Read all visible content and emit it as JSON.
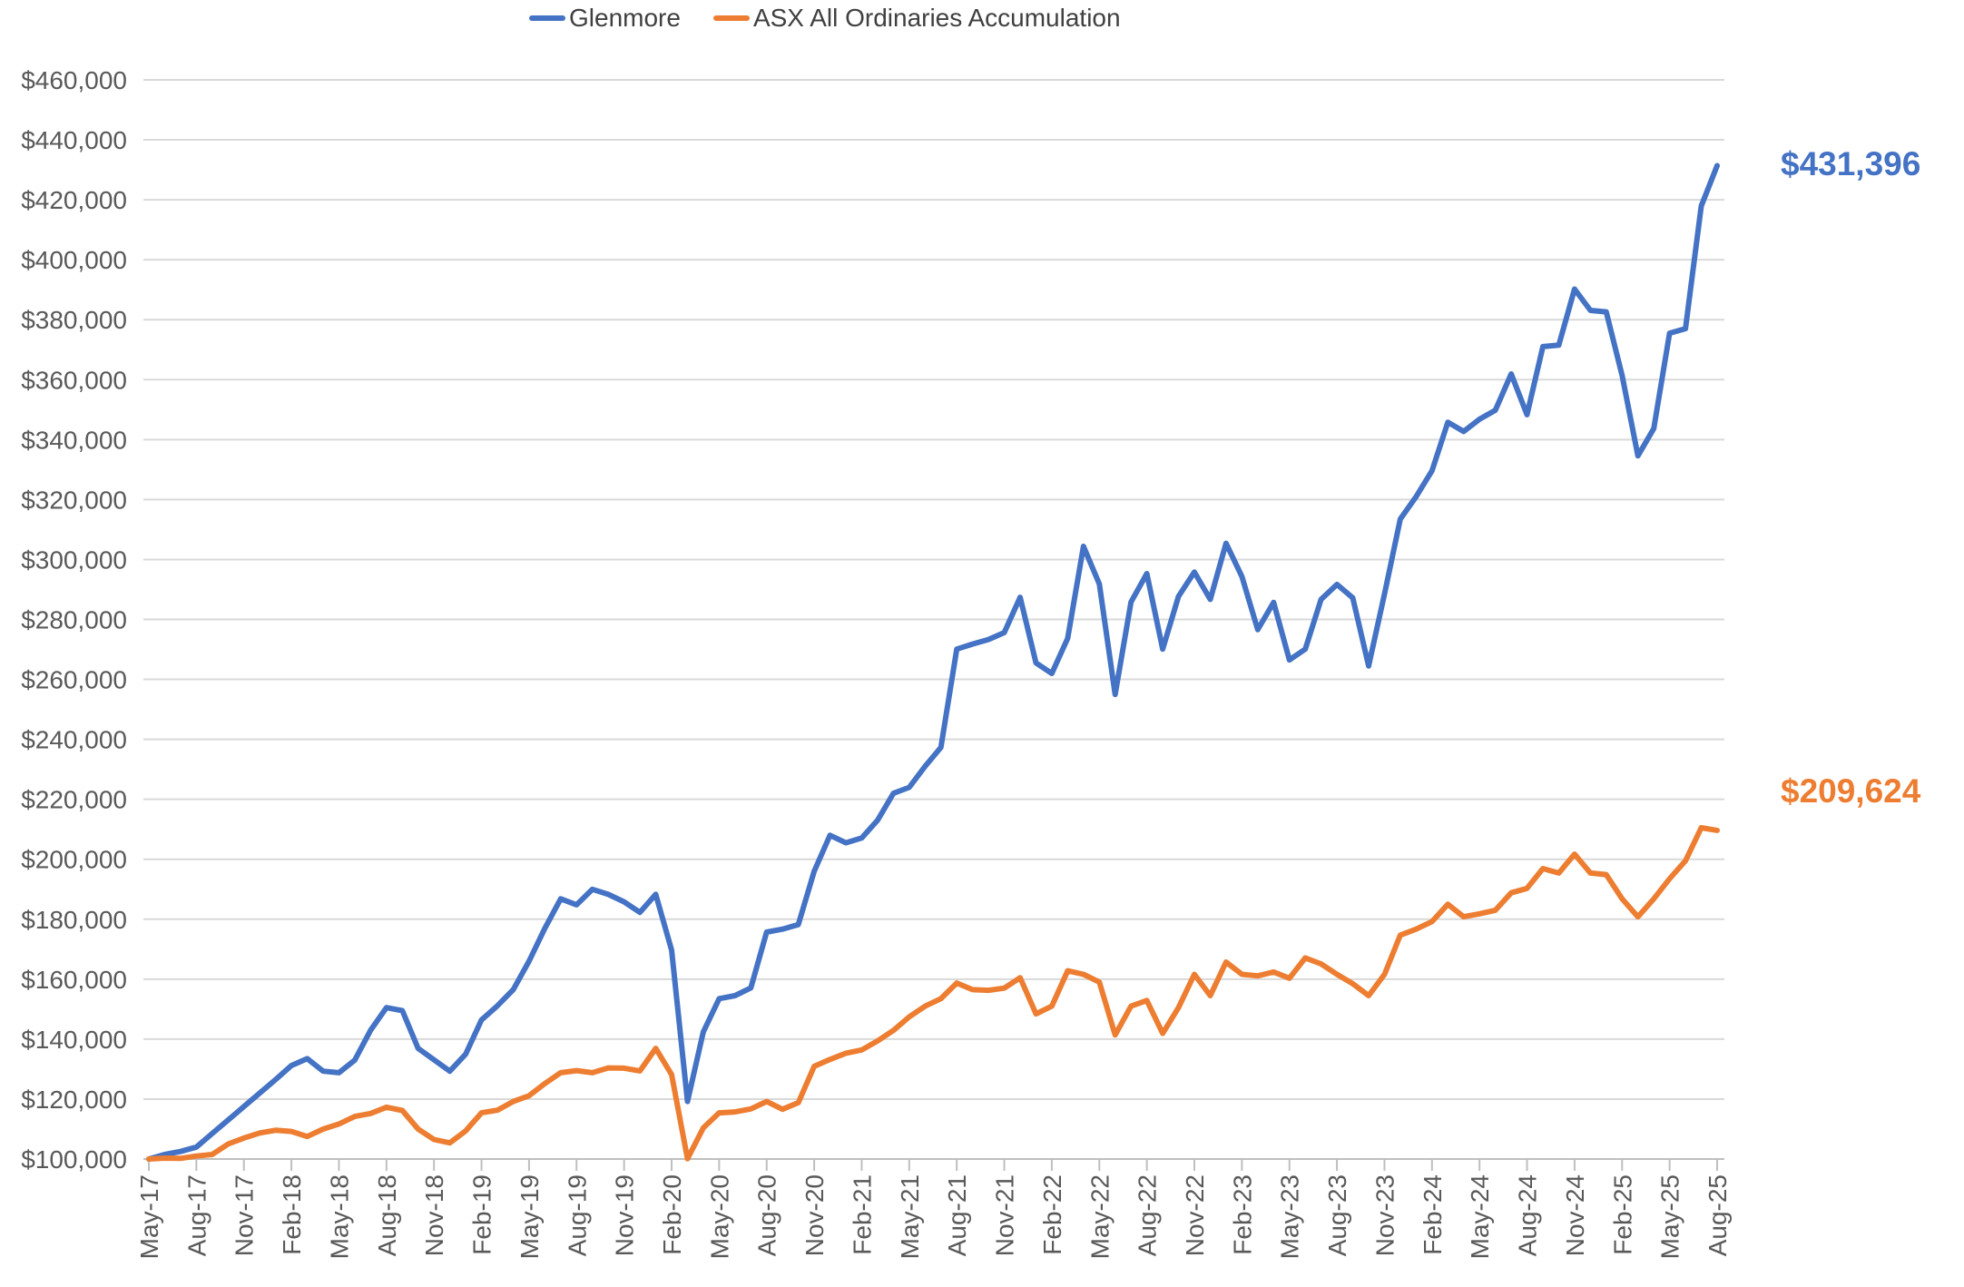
{
  "chart_data": {
    "type": "line",
    "title": "",
    "xlabel": "",
    "ylabel": "",
    "ylim": [
      100000,
      460000
    ],
    "ytick_step": 20000,
    "ytick_format": "$#,##0",
    "x_tick_every": 3,
    "grid": "horizontal",
    "legend_position": "top-center",
    "end_labels": [
      "$431,396",
      "$209,624"
    ],
    "x": [
      "May-17",
      "Jun-17",
      "Jul-17",
      "Aug-17",
      "Sep-17",
      "Oct-17",
      "Nov-17",
      "Dec-17",
      "Jan-18",
      "Feb-18",
      "Mar-18",
      "Apr-18",
      "May-18",
      "Jun-18",
      "Jul-18",
      "Aug-18",
      "Sep-18",
      "Oct-18",
      "Nov-18",
      "Dec-18",
      "Jan-19",
      "Feb-19",
      "Mar-19",
      "Apr-19",
      "May-19",
      "Jun-19",
      "Jul-19",
      "Aug-19",
      "Sep-19",
      "Oct-19",
      "Nov-19",
      "Dec-19",
      "Jan-20",
      "Feb-20",
      "Mar-20",
      "Apr-20",
      "May-20",
      "Jun-20",
      "Jul-20",
      "Aug-20",
      "Sep-20",
      "Oct-20",
      "Nov-20",
      "Dec-20",
      "Jan-21",
      "Feb-21",
      "Mar-21",
      "Apr-21",
      "May-21",
      "Jun-21",
      "Jul-21",
      "Aug-21",
      "Sep-21",
      "Oct-21",
      "Nov-21",
      "Dec-21",
      "Jan-22",
      "Feb-22",
      "Mar-22",
      "Apr-22",
      "May-22",
      "Jun-22",
      "Jul-22",
      "Aug-22",
      "Sep-22",
      "Oct-22",
      "Nov-22",
      "Dec-22",
      "Jan-23",
      "Feb-23",
      "Mar-23",
      "Apr-23",
      "May-23",
      "Jun-23",
      "Jul-23",
      "Aug-23",
      "Sep-23",
      "Oct-23",
      "Nov-23",
      "Dec-23",
      "Jan-24",
      "Feb-24",
      "Mar-24",
      "Apr-24",
      "May-24",
      "Jun-24",
      "Jul-24",
      "Aug-24",
      "Sep-24",
      "Oct-24",
      "Nov-24",
      "Dec-24",
      "Jan-25",
      "Feb-25",
      "Mar-25",
      "Apr-25",
      "May-25",
      "Jun-25",
      "Jul-25",
      "Aug-25"
    ],
    "series": [
      {
        "name": "Glenmore",
        "color": "#4472C4",
        "values": [
          100000,
          101500,
          102500,
          104000,
          108500,
          113000,
          117500,
          122000,
          126500,
          131200,
          133500,
          129300,
          128800,
          133000,
          143000,
          150500,
          149500,
          136900,
          133100,
          129300,
          135000,
          146400,
          151100,
          156500,
          166000,
          177000,
          186800,
          184800,
          190000,
          188300,
          185800,
          182300,
          188300,
          169700,
          119200,
          142400,
          153500,
          154500,
          157100,
          175700,
          176700,
          178200,
          196000,
          208000,
          205500,
          207100,
          213000,
          222000,
          224000,
          231000,
          237300,
          270100,
          271800,
          273300,
          275600,
          287400,
          265500,
          262000,
          273700,
          304400,
          291800,
          255000,
          285800,
          295300,
          270100,
          287700,
          295800,
          286700,
          305400,
          294300,
          276600,
          285700,
          266500,
          270100,
          286700,
          291700,
          287200,
          264500,
          288500,
          313500,
          321000,
          329600,
          345800,
          342700,
          346800,
          349800,
          361900,
          348300,
          371000,
          371500,
          390200,
          383100,
          382600,
          361400,
          334600,
          343700,
          375500,
          377000,
          417900,
          431396
        ]
      },
      {
        "name": "ASX All Ordinaries Accumulation",
        "color": "#ED7D31",
        "values": [
          100000,
          100300,
          100200,
          101000,
          101500,
          105000,
          107000,
          108700,
          109600,
          109200,
          107500,
          110000,
          111700,
          114200,
          115200,
          117300,
          116200,
          110000,
          106500,
          105400,
          109400,
          115400,
          116300,
          119200,
          121100,
          125200,
          128800,
          129500,
          128800,
          130400,
          130300,
          129400,
          136900,
          128200,
          100100,
          110400,
          115400,
          115700,
          116700,
          119200,
          116600,
          118800,
          130900,
          133200,
          135300,
          136400,
          139400,
          142900,
          147400,
          151000,
          153500,
          158700,
          156500,
          156300,
          157000,
          160500,
          148400,
          151000,
          162800,
          161600,
          159000,
          141400,
          151000,
          152900,
          141900,
          150500,
          161600,
          154500,
          165700,
          161600,
          161100,
          162400,
          160300,
          167100,
          165100,
          161600,
          158500,
          154500,
          161600,
          174700,
          176700,
          179200,
          185000,
          180800,
          181800,
          183000,
          188800,
          190300,
          196900,
          195400,
          201700,
          195400,
          194900,
          186800,
          180800,
          186800,
          193500,
          199500,
          210500,
          209624
        ]
      }
    ]
  }
}
